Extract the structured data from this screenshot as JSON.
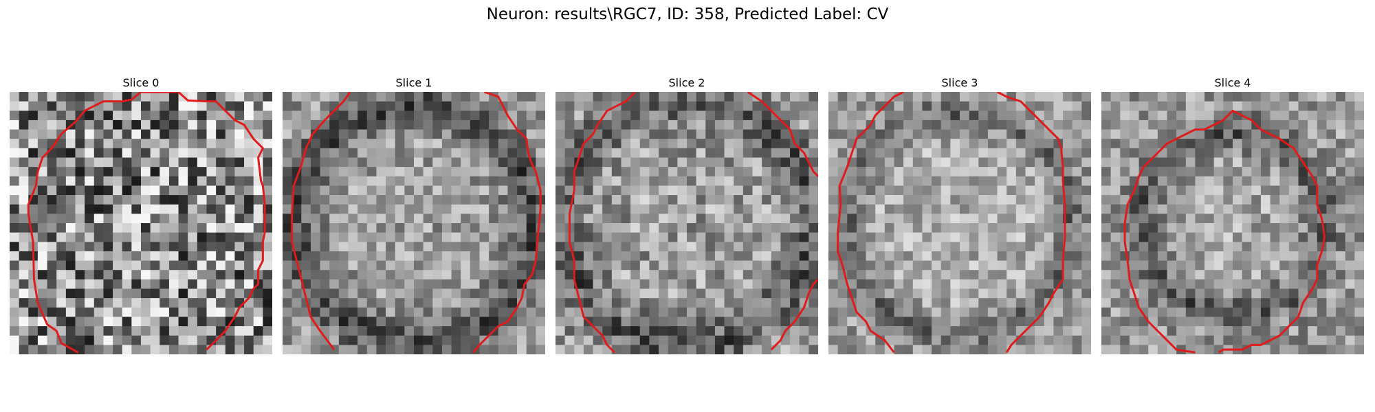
{
  "figure": {
    "title": "Neuron: results\\RGC7, ID: 358, Predicted Label: CV"
  },
  "contour_color": "#e01b1b",
  "grid_size": 28,
  "slices": [
    {
      "label": "Slice 0",
      "contour": [
        [
          7.3,
          27.8
        ],
        [
          5.5,
          26.8
        ],
        [
          5.0,
          25.5
        ],
        [
          4.0,
          24.8
        ],
        [
          3.0,
          22.5
        ],
        [
          2.6,
          20.0
        ],
        [
          2.5,
          16.0
        ],
        [
          2.0,
          13.0
        ],
        [
          2.0,
          12.0
        ],
        [
          2.8,
          10.0
        ],
        [
          3.0,
          8.5
        ],
        [
          3.5,
          7.0
        ],
        [
          4.5,
          6.0
        ],
        [
          5.5,
          4.5
        ],
        [
          7.0,
          3.2
        ],
        [
          8.0,
          2.0
        ],
        [
          9.0,
          1.5
        ],
        [
          10.0,
          1.0
        ],
        [
          12.0,
          1.0
        ],
        [
          13.0,
          0.8
        ],
        [
          14.0,
          0.0
        ],
        [
          15.0,
          0.0
        ],
        [
          17.0,
          0.0
        ],
        [
          18.0,
          0.0
        ],
        [
          19.0,
          0.9
        ],
        [
          21.0,
          1.0
        ],
        [
          22.0,
          1.0
        ],
        [
          23.0,
          2.0
        ],
        [
          24.0,
          3.0
        ],
        [
          25.0,
          3.5
        ],
        [
          26.0,
          5.0
        ],
        [
          27.0,
          6.0
        ],
        [
          26.5,
          7.0
        ],
        [
          26.8,
          9.5
        ],
        [
          27.0,
          10.0
        ],
        [
          27.2,
          12.0
        ],
        [
          27.2,
          15.0
        ],
        [
          27.0,
          16.0
        ],
        [
          27.0,
          18.0
        ],
        [
          26.5,
          19.0
        ],
        [
          26.5,
          20.5
        ],
        [
          26.0,
          21.0
        ],
        [
          25.5,
          22.0
        ],
        [
          24.5,
          23.0
        ],
        [
          24.0,
          24.0
        ],
        [
          23.0,
          25.5
        ],
        [
          22.0,
          26.5
        ],
        [
          21.0,
          27.5
        ]
      ]
    },
    {
      "label": "Slice 1",
      "contour": [
        [
          5.5,
          27.5
        ],
        [
          4.0,
          25.5
        ],
        [
          3.0,
          24.0
        ],
        [
          2.5,
          22.0
        ],
        [
          2.0,
          20.0
        ],
        [
          1.5,
          18.0
        ],
        [
          1.0,
          16.0
        ],
        [
          1.0,
          13.0
        ],
        [
          1.2,
          10.0
        ],
        [
          2.0,
          7.8
        ],
        [
          2.5,
          6.0
        ],
        [
          3.2,
          4.5
        ],
        [
          4.5,
          3.0
        ],
        [
          5.5,
          2.0
        ],
        [
          6.5,
          1.0
        ],
        [
          7.2,
          0.0
        ]
      ],
      "contour_b": [
        [
          21.5,
          0.0
        ],
        [
          23.0,
          0.5
        ],
        [
          23.5,
          1.5
        ],
        [
          24.0,
          2.5
        ],
        [
          25.0,
          4.0
        ],
        [
          26.0,
          5.0
        ],
        [
          26.2,
          6.5
        ],
        [
          26.5,
          7.5
        ],
        [
          27.0,
          8.5
        ],
        [
          27.5,
          10.5
        ],
        [
          27.5,
          12.5
        ],
        [
          27.2,
          15.5
        ],
        [
          27.0,
          18.0
        ],
        [
          26.6,
          19.5
        ],
        [
          25.8,
          20.5
        ],
        [
          25.5,
          22.0
        ],
        [
          25.0,
          23.0
        ],
        [
          24.0,
          24.5
        ],
        [
          23.0,
          25.0
        ],
        [
          22.0,
          26.0
        ],
        [
          21.0,
          27.0
        ],
        [
          20.3,
          27.8
        ]
      ]
    },
    {
      "label": "Slice 2",
      "contour": [
        [
          6.3,
          27.8
        ],
        [
          5.5,
          27.0
        ],
        [
          5.0,
          26.0
        ],
        [
          4.0,
          25.0
        ],
        [
          3.0,
          24.0
        ],
        [
          2.5,
          22.0
        ],
        [
          2.0,
          20.0
        ],
        [
          2.0,
          18.0
        ],
        [
          1.5,
          16.0
        ],
        [
          1.5,
          13.0
        ],
        [
          2.0,
          10.5
        ],
        [
          2.0,
          8.5
        ],
        [
          2.5,
          7.0
        ],
        [
          3.0,
          5.5
        ],
        [
          4.0,
          4.5
        ],
        [
          4.5,
          3.5
        ],
        [
          5.5,
          2.0
        ],
        [
          6.5,
          1.5
        ],
        [
          7.5,
          1.0
        ],
        [
          8.5,
          0.0
        ]
      ],
      "contour_b": [
        [
          20.5,
          0.0
        ],
        [
          22.0,
          1.0
        ],
        [
          23.0,
          2.0
        ],
        [
          24.0,
          3.0
        ],
        [
          25.0,
          4.0
        ],
        [
          25.5,
          5.5
        ],
        [
          26.5,
          6.5
        ],
        [
          27.0,
          7.5
        ],
        [
          27.5,
          8.5
        ],
        [
          28.0,
          9.0
        ]
      ],
      "contour_c": [
        [
          28.0,
          20.0
        ],
        [
          27.5,
          20.5
        ],
        [
          27.0,
          21.5
        ],
        [
          26.5,
          23.0
        ],
        [
          25.5,
          24.5
        ],
        [
          24.5,
          25.5
        ],
        [
          24.0,
          26.5
        ],
        [
          23.0,
          27.5
        ]
      ]
    },
    {
      "label": "Slice 3",
      "contour": [
        [
          7.0,
          27.8
        ],
        [
          6.0,
          26.5
        ],
        [
          4.5,
          25.5
        ],
        [
          4.0,
          24.5
        ],
        [
          3.0,
          23.5
        ],
        [
          2.5,
          22.0
        ],
        [
          2.0,
          20.5
        ],
        [
          1.5,
          18.5
        ],
        [
          1.0,
          17.0
        ],
        [
          1.0,
          15.0
        ],
        [
          1.3,
          12.0
        ],
        [
          1.2,
          10.0
        ],
        [
          2.0,
          8.0
        ],
        [
          2.5,
          6.5
        ],
        [
          3.0,
          5.0
        ],
        [
          4.5,
          3.5
        ],
        [
          5.0,
          2.5
        ],
        [
          6.0,
          1.5
        ],
        [
          7.0,
          0.5
        ],
        [
          8.0,
          0.0
        ]
      ],
      "contour_b": [
        [
          18.0,
          0.0
        ],
        [
          19.0,
          0.5
        ],
        [
          20.5,
          1.0
        ],
        [
          21.5,
          2.0
        ],
        [
          22.5,
          3.0
        ],
        [
          23.5,
          4.0
        ],
        [
          24.5,
          5.0
        ],
        [
          24.8,
          6.0
        ],
        [
          25.0,
          8.0
        ],
        [
          25.0,
          9.5
        ],
        [
          25.2,
          12.0
        ],
        [
          25.2,
          15.5
        ],
        [
          25.0,
          18.0
        ],
        [
          25.0,
          20.0
        ],
        [
          24.0,
          21.5
        ],
        [
          23.5,
          22.5
        ],
        [
          22.5,
          24.0
        ],
        [
          21.5,
          25.0
        ],
        [
          20.5,
          26.0
        ],
        [
          19.5,
          27.0
        ],
        [
          19.0,
          27.8
        ]
      ]
    },
    {
      "label": "Slice 4",
      "contour": [
        [
          10.0,
          27.8
        ],
        [
          8.0,
          27.5
        ],
        [
          7.0,
          26.5
        ],
        [
          6.0,
          25.5
        ],
        [
          5.0,
          24.5
        ],
        [
          4.0,
          23.0
        ],
        [
          3.5,
          21.5
        ],
        [
          3.0,
          20.0
        ],
        [
          2.8,
          18.0
        ],
        [
          2.5,
          16.0
        ],
        [
          2.5,
          14.0
        ],
        [
          2.8,
          12.0
        ],
        [
          3.5,
          10.5
        ],
        [
          4.0,
          9.0
        ],
        [
          4.5,
          8.0
        ],
        [
          5.5,
          7.0
        ],
        [
          6.5,
          6.0
        ],
        [
          7.0,
          5.5
        ],
        [
          8.0,
          5.0
        ],
        [
          9.0,
          4.5
        ],
        [
          10.0,
          4.0
        ],
        [
          11.0,
          4.0
        ],
        [
          12.0,
          3.5
        ],
        [
          13.0,
          3.0
        ],
        [
          14.0,
          2.0
        ],
        [
          15.0,
          2.5
        ],
        [
          16.0,
          3.0
        ],
        [
          17.0,
          4.0
        ],
        [
          18.0,
          4.5
        ],
        [
          19.0,
          5.0
        ],
        [
          20.5,
          6.0
        ],
        [
          21.5,
          7.5
        ],
        [
          22.5,
          9.0
        ],
        [
          23.0,
          10.0
        ],
        [
          23.0,
          12.0
        ],
        [
          23.5,
          13.5
        ],
        [
          23.8,
          15.5
        ],
        [
          23.5,
          17.0
        ],
        [
          23.0,
          18.5
        ],
        [
          23.0,
          20.0
        ],
        [
          22.5,
          21.0
        ],
        [
          21.5,
          22.5
        ],
        [
          21.0,
          24.0
        ],
        [
          20.0,
          25.0
        ],
        [
          19.0,
          26.0
        ],
        [
          18.0,
          26.5
        ],
        [
          17.0,
          27.0
        ],
        [
          16.0,
          27.0
        ],
        [
          15.0,
          27.5
        ],
        [
          14.0,
          27.5
        ],
        [
          13.0,
          27.5
        ],
        [
          12.5,
          27.8
        ]
      ]
    }
  ]
}
